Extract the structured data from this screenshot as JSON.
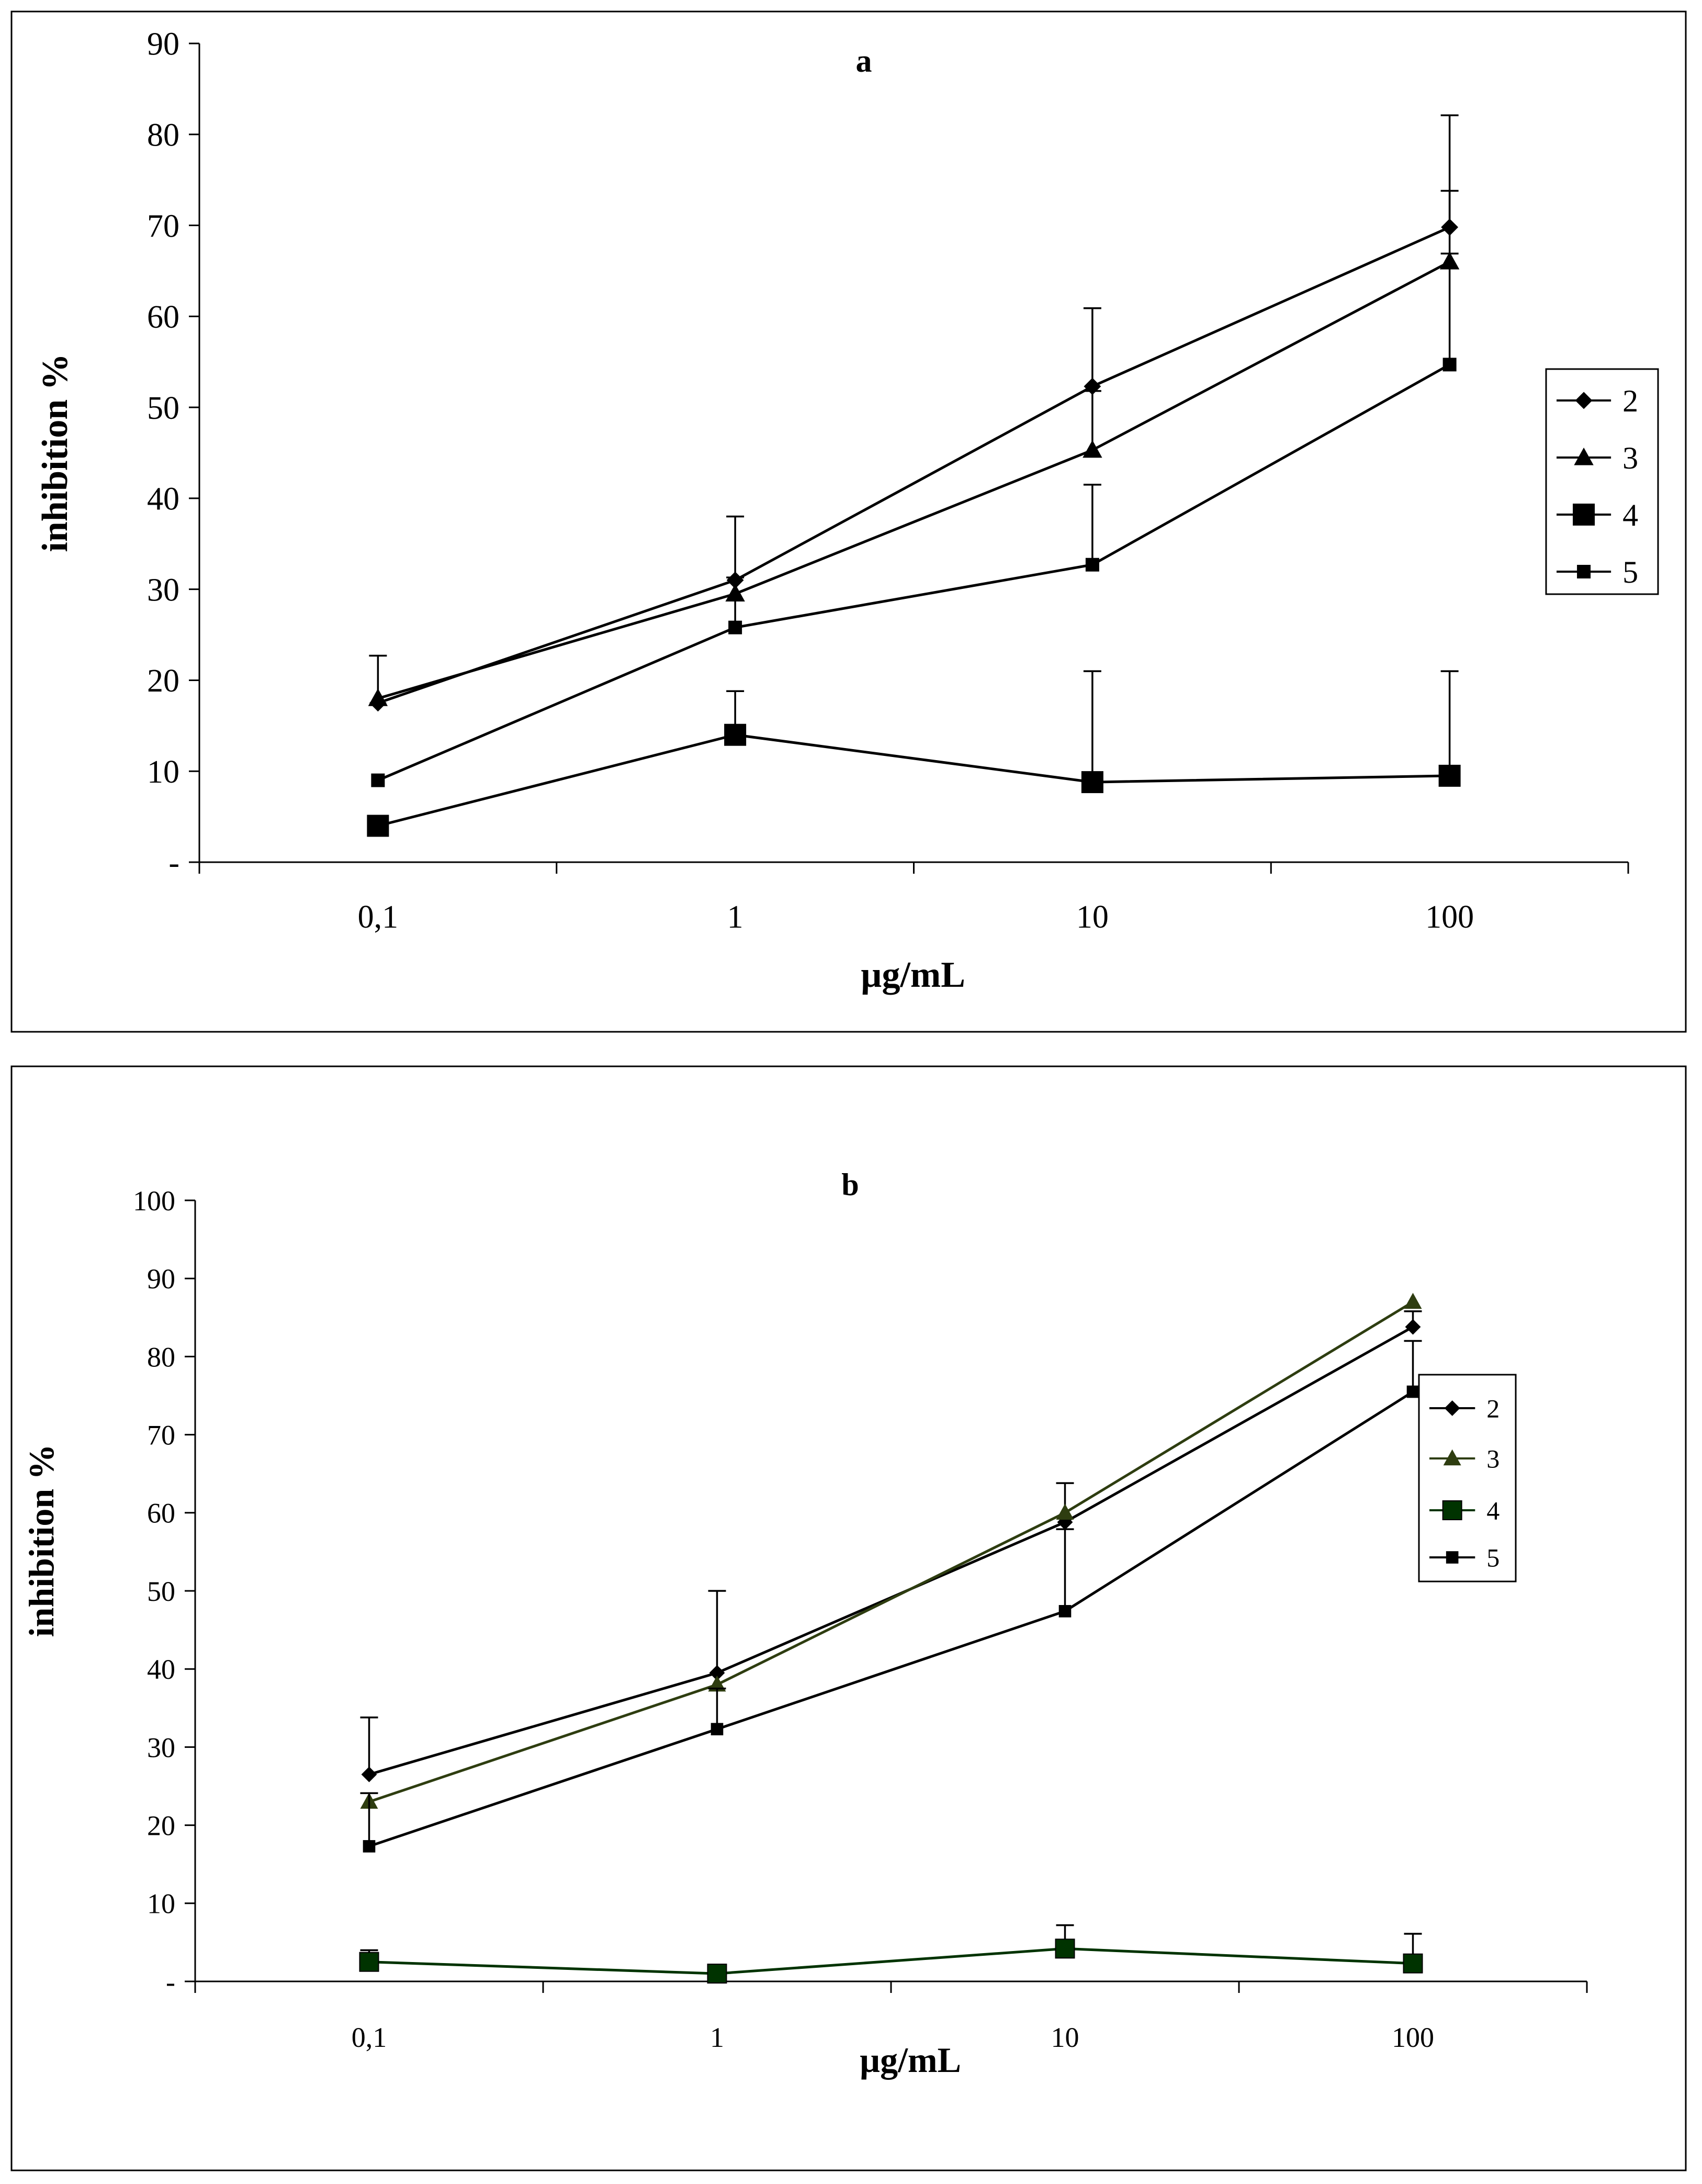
{
  "chart_data": [
    {
      "type": "line",
      "title": "a",
      "xlabel": "µg/mL",
      "ylabel": "inhibition %",
      "x_scale": "log",
      "categories": [
        "0,1",
        "1",
        "10",
        "100"
      ],
      "x": [
        0.1,
        1,
        10,
        100
      ],
      "ylim": [
        0,
        90
      ],
      "y_ticks": [
        0,
        10,
        20,
        30,
        40,
        50,
        60,
        70,
        80,
        90
      ],
      "y_tick_labels": [
        "-",
        "10",
        "20",
        "30",
        "40",
        "50",
        "60",
        "70",
        "80",
        "90"
      ],
      "grid": false,
      "legend_position": "right",
      "series": [
        {
          "name": "2",
          "marker": "diamond",
          "color": "#000000",
          "values": [
            17.5,
            31,
            52.3,
            69.8
          ],
          "errors": [
            5.2,
            7.0,
            8.6,
            12.3
          ]
        },
        {
          "name": "3",
          "marker": "triangle",
          "color": "#000000",
          "values": [
            18,
            29.5,
            45.3,
            66
          ],
          "errors": [
            null,
            null,
            6.5,
            7.8
          ]
        },
        {
          "name": "4",
          "marker": "square-large",
          "color": "#000000",
          "values": [
            4,
            14,
            8.8,
            9.5
          ],
          "errors": [
            null,
            4.8,
            12.2,
            11.5
          ]
        },
        {
          "name": "5",
          "marker": "square-small",
          "color": "#000000",
          "values": [
            9,
            25.8,
            32.7,
            54.7
          ],
          "errors": [
            null,
            5.5,
            8.8,
            12.2
          ]
        }
      ]
    },
    {
      "type": "line",
      "title": "b",
      "xlabel": "µg/mL",
      "ylabel": "inhibition %",
      "x_scale": "log",
      "categories": [
        "0,1",
        "1",
        "10",
        "100"
      ],
      "x": [
        0.1,
        1,
        10,
        100
      ],
      "ylim": [
        0,
        100
      ],
      "y_ticks": [
        0,
        10,
        20,
        30,
        40,
        50,
        60,
        70,
        80,
        90,
        100
      ],
      "y_tick_labels": [
        "-",
        "10",
        "20",
        "30",
        "40",
        "50",
        "60",
        "70",
        "80",
        "90",
        "100"
      ],
      "grid": false,
      "legend_position": "right",
      "series": [
        {
          "name": "2",
          "marker": "diamond",
          "color": "#000000",
          "values": [
            26.5,
            39.5,
            58.8,
            83.8
          ],
          "errors": [
            7.3,
            10.5,
            5.0,
            2.0
          ]
        },
        {
          "name": "3",
          "marker": "triangle",
          "color": "#2e3d10",
          "values": [
            23,
            38,
            60,
            87
          ],
          "errors": [
            null,
            null,
            null,
            null
          ]
        },
        {
          "name": "4",
          "marker": "square-large",
          "color": "#003300",
          "values": [
            2.5,
            1,
            4.2,
            2.3
          ],
          "errors": [
            1.5,
            null,
            3.0,
            3.8
          ]
        },
        {
          "name": "5",
          "marker": "square-small",
          "color": "#000000",
          "values": [
            17.3,
            32.3,
            47.4,
            75.5
          ],
          "errors": [
            6.8,
            5.2,
            10.5,
            6.5
          ]
        }
      ]
    }
  ]
}
